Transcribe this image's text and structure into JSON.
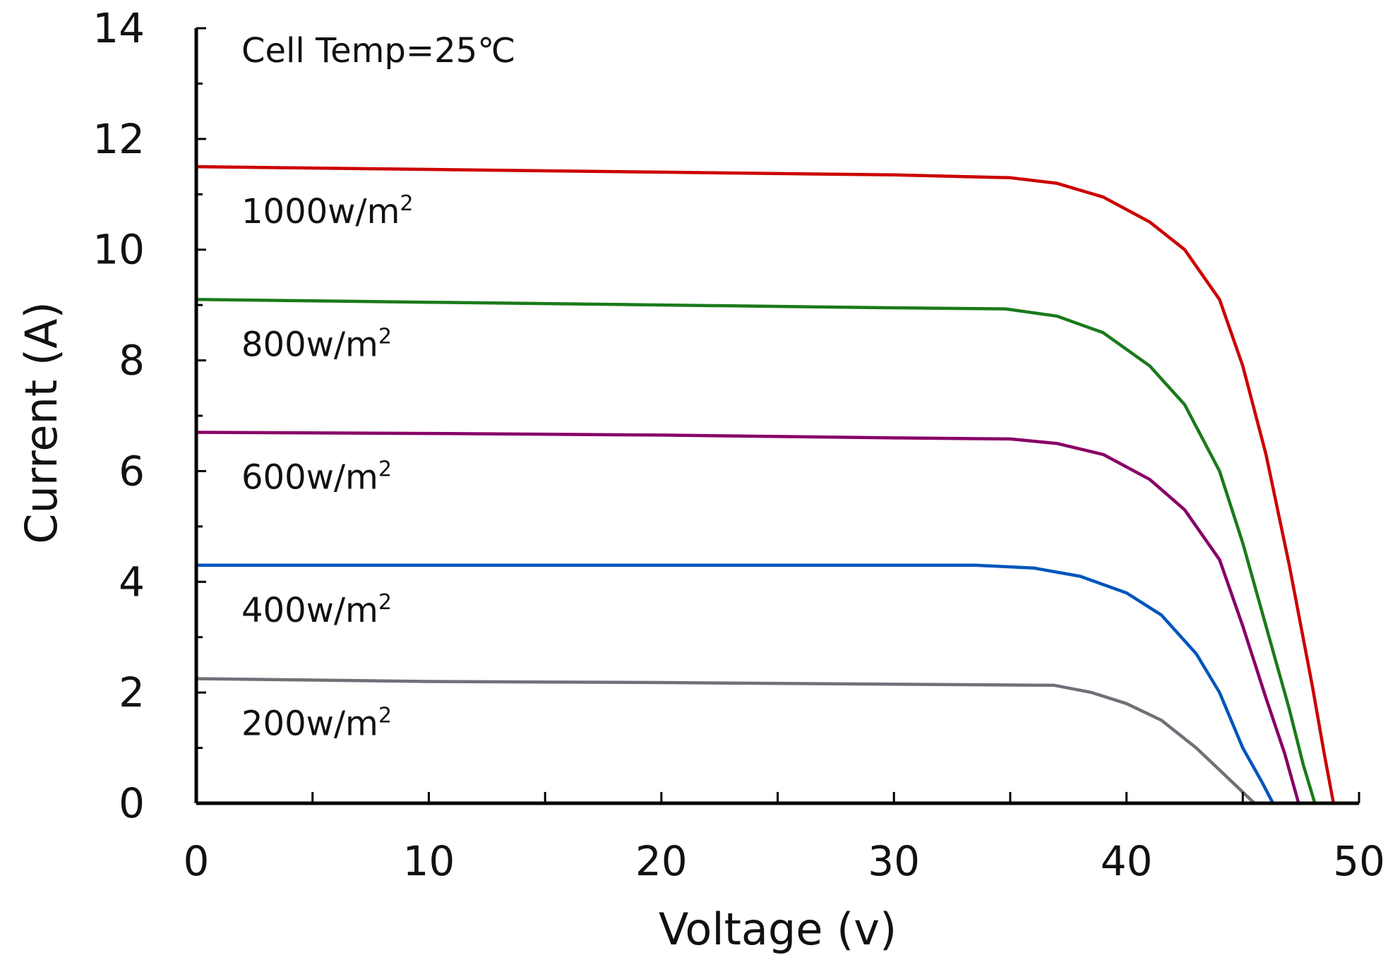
{
  "chart_data": {
    "type": "line",
    "title": "",
    "annotation": "Cell Temp=25℃",
    "xlabel": "Voltage (v)",
    "ylabel": "Current (A)",
    "xlim": [
      0,
      50
    ],
    "ylim": [
      0,
      14
    ],
    "xticks": [
      0,
      10,
      20,
      30,
      40,
      50
    ],
    "yticks": [
      0,
      2,
      4,
      6,
      8,
      10,
      12,
      14
    ],
    "grid": false,
    "legend": "inline labels",
    "series": [
      {
        "name": "1000w/m",
        "superscript": "2",
        "color": "#cc0000",
        "x": [
          0,
          10,
          20,
          30,
          35,
          37,
          39,
          41,
          42.5,
          44,
          45,
          46,
          47,
          48,
          48.5,
          48.9
        ],
        "y": [
          11.5,
          11.45,
          11.4,
          11.35,
          11.3,
          11.2,
          10.95,
          10.5,
          10.0,
          9.1,
          7.9,
          6.3,
          4.3,
          2.1,
          0.9,
          0
        ]
      },
      {
        "name": "800w/m",
        "superscript": "2",
        "color": "#1a7a1a",
        "x": [
          0,
          10,
          20,
          30,
          34.8,
          37,
          39,
          41,
          42.5,
          44,
          45,
          46,
          47,
          47.6,
          48.1
        ],
        "y": [
          9.1,
          9.05,
          9.0,
          8.95,
          8.93,
          8.8,
          8.5,
          7.9,
          7.2,
          6.0,
          4.7,
          3.2,
          1.7,
          0.7,
          0
        ]
      },
      {
        "name": "600w/m",
        "superscript": "2",
        "color": "#880066",
        "x": [
          0,
          10,
          20,
          30,
          35,
          37,
          39,
          41,
          42.5,
          44,
          45,
          46,
          46.8,
          47.4
        ],
        "y": [
          6.7,
          6.68,
          6.65,
          6.6,
          6.58,
          6.5,
          6.3,
          5.85,
          5.3,
          4.4,
          3.2,
          1.9,
          0.9,
          0
        ]
      },
      {
        "name": "400w/m",
        "superscript": "2",
        "color": "#0055bb",
        "x": [
          0,
          10,
          20,
          30,
          33.5,
          36,
          38,
          40,
          41.5,
          43,
          44,
          45,
          45.8,
          46.3
        ],
        "y": [
          4.3,
          4.3,
          4.3,
          4.3,
          4.3,
          4.25,
          4.1,
          3.8,
          3.4,
          2.7,
          2.0,
          1.0,
          0.4,
          0
        ]
      },
      {
        "name": "200w/m",
        "superscript": "2",
        "color": "#6e7278",
        "x": [
          0,
          10,
          20,
          30,
          36.9,
          38.5,
          40,
          41.5,
          43,
          44,
          45,
          45.5
        ],
        "y": [
          2.25,
          2.2,
          2.18,
          2.15,
          2.13,
          2.0,
          1.8,
          1.5,
          1.0,
          0.6,
          0.2,
          0
        ]
      }
    ]
  }
}
